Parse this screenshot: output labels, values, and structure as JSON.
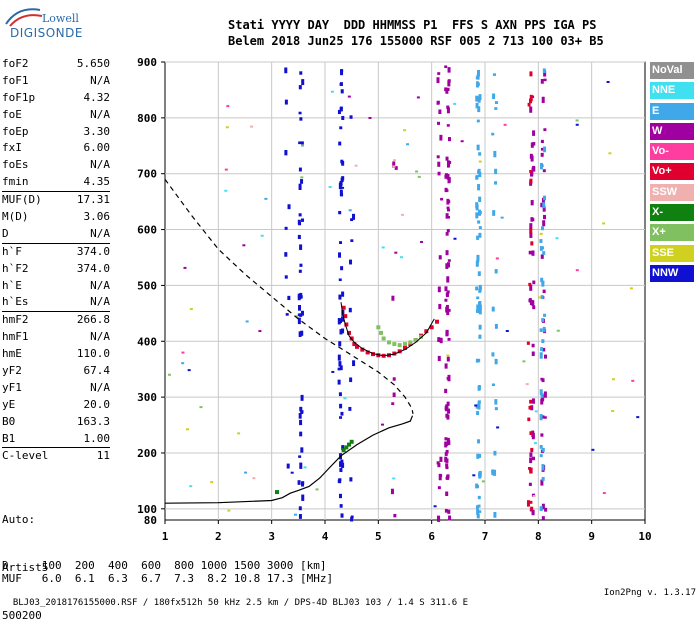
{
  "logo": {
    "line1": "Lowell",
    "line2": "DIGISONDE"
  },
  "header": {
    "row1": "Stati YYYY DAY  DDD HHMMSS P1  FFS S AXN PPS IGA PS",
    "row2": "Belem 2018 Jun25 176 155000 RSF 005 2 713 100 03+ B5"
  },
  "params": [
    {
      "name": "foF2",
      "value": "5.650"
    },
    {
      "name": "foF1",
      "value": "N/A"
    },
    {
      "name": "foF1p",
      "value": "4.32"
    },
    {
      "name": "foE",
      "value": "N/A"
    },
    {
      "name": "foEp",
      "value": "3.30"
    },
    {
      "name": "fxI",
      "value": "6.00"
    },
    {
      "name": "foEs",
      "value": "N/A"
    },
    {
      "name": "fmin",
      "value": "4.35"
    },
    {
      "name": "MUF(D)",
      "value": "17.31"
    },
    {
      "name": "M(D)",
      "value": "3.06"
    },
    {
      "name": "D",
      "value": "N/A"
    },
    {
      "name": "h`F",
      "value": "374.0"
    },
    {
      "name": "h`F2",
      "value": "374.0"
    },
    {
      "name": "h`E",
      "value": "N/A"
    },
    {
      "name": "h`Es",
      "value": "N/A"
    },
    {
      "name": "hmF2",
      "value": "266.8"
    },
    {
      "name": "hmF1",
      "value": "N/A"
    },
    {
      "name": "hmE",
      "value": "110.0"
    },
    {
      "name": "yF2",
      "value": "67.4"
    },
    {
      "name": "yF1",
      "value": "N/A"
    },
    {
      "name": "yE",
      "value": "20.0"
    },
    {
      "name": "B0",
      "value": "163.3"
    },
    {
      "name": "B1",
      "value": "1.00"
    },
    {
      "name": "C-level",
      "value": "11"
    }
  ],
  "auto": {
    "l1": "Auto:",
    "l2": "Artist5",
    "l3": "500200"
  },
  "muf_table": {
    "d_row": "D     100  200  400  600  800 1000 1500 3000 [km]",
    "muf_row": "MUF   6.0  6.1  6.3  6.7  7.3  8.2 10.8 17.3 [MHz]"
  },
  "footer": {
    "left": "BLJ03_2018176155000.RSF / 180fx512h 50 kHz 2.5 km / DPS-4D BLJ03 103 / 1.4 S 311.6 E",
    "right": "Ion2Png v. 1.3.17"
  },
  "legend": [
    {
      "label": "NoVal",
      "color": "#909090"
    },
    {
      "label": "NNE",
      "color": "#40e0f0"
    },
    {
      "label": "E",
      "color": "#40a8e8"
    },
    {
      "label": "W",
      "color": "#a000a0"
    },
    {
      "label": "Vo-",
      "color": "#ff3ca0"
    },
    {
      "label": "Vo+",
      "color": "#e00030"
    },
    {
      "label": "SSW",
      "color": "#f0b0b0"
    },
    {
      "label": "X-",
      "color": "#108010"
    },
    {
      "label": "X+",
      "color": "#80c060"
    },
    {
      "label": "SSE",
      "color": "#d0d020"
    },
    {
      "label": "NNW",
      "color": "#1010d0"
    }
  ],
  "chart_data": {
    "type": "scatter",
    "xlim": [
      1,
      10
    ],
    "ylim": [
      80,
      900
    ],
    "x_ticks": [
      "1",
      "2",
      "3",
      "4",
      "5",
      "6",
      "7",
      "8",
      "9",
      "10"
    ],
    "y_ticks": [
      "100",
      "200",
      "300",
      "400",
      "500",
      "600",
      "700",
      "800",
      "900"
    ],
    "y_bottom_label": "80",
    "grid": true,
    "legend_position": "right",
    "series": [
      {
        "name": "Vo+",
        "color": "#e00030",
        "points": [
          [
            4.35,
            460
          ],
          [
            4.38,
            445
          ],
          [
            4.4,
            430
          ],
          [
            4.45,
            415
          ],
          [
            4.5,
            405
          ],
          [
            4.55,
            395
          ],
          [
            4.6,
            390
          ],
          [
            4.7,
            385
          ],
          [
            4.8,
            380
          ],
          [
            4.9,
            377
          ],
          [
            5.0,
            375
          ],
          [
            5.1,
            374
          ],
          [
            5.2,
            375
          ],
          [
            5.3,
            378
          ],
          [
            5.4,
            382
          ],
          [
            5.5,
            388
          ],
          [
            5.6,
            395
          ],
          [
            5.7,
            402
          ],
          [
            5.8,
            410
          ],
          [
            5.9,
            418
          ],
          [
            6.0,
            425
          ],
          [
            6.1,
            435
          ]
        ]
      },
      {
        "name": "X+",
        "color": "#80c060",
        "points": [
          [
            5.0,
            425
          ],
          [
            5.05,
            415
          ],
          [
            5.1,
            405
          ],
          [
            5.2,
            398
          ],
          [
            5.3,
            395
          ],
          [
            5.4,
            393
          ],
          [
            5.5,
            395
          ],
          [
            5.6,
            398
          ],
          [
            5.7,
            402
          ],
          [
            5.8,
            408
          ]
        ]
      },
      {
        "name": "X-",
        "color": "#108010",
        "points": [
          [
            4.4,
            210
          ],
          [
            4.45,
            215
          ],
          [
            4.5,
            220
          ],
          [
            4.35,
            205
          ],
          [
            3.1,
            130
          ]
        ]
      }
    ],
    "virtual_height_trace": [
      [
        4.3,
        470
      ],
      [
        4.33,
        450
      ],
      [
        4.38,
        430
      ],
      [
        4.45,
        410
      ],
      [
        4.55,
        398
      ],
      [
        4.7,
        387
      ],
      [
        4.9,
        378
      ],
      [
        5.1,
        374
      ],
      [
        5.3,
        377
      ],
      [
        5.5,
        385
      ],
      [
        5.7,
        398
      ],
      [
        5.9,
        415
      ],
      [
        6.05,
        440
      ]
    ],
    "profile_solid": [
      [
        1,
        110
      ],
      [
        2,
        111
      ],
      [
        3,
        115
      ],
      [
        3.2,
        120
      ],
      [
        3.35,
        128
      ],
      [
        3.5,
        133
      ],
      [
        3.7,
        140
      ],
      [
        3.9,
        155
      ],
      [
        4.1,
        175
      ],
      [
        4.3,
        195
      ],
      [
        4.6,
        215
      ],
      [
        4.9,
        232
      ],
      [
        5.2,
        245
      ],
      [
        5.45,
        252
      ],
      [
        5.6,
        257
      ],
      [
        5.64,
        266.8
      ]
    ],
    "profile_dashed": [
      [
        1,
        690
      ],
      [
        1.5,
        625
      ],
      [
        2,
        565
      ],
      [
        2.5,
        520
      ],
      [
        3,
        480
      ],
      [
        3.5,
        440
      ],
      [
        4,
        405
      ],
      [
        4.5,
        375
      ],
      [
        5,
        345
      ],
      [
        5.3,
        322
      ],
      [
        5.5,
        300
      ],
      [
        5.63,
        280
      ],
      [
        5.65,
        270
      ]
    ]
  }
}
